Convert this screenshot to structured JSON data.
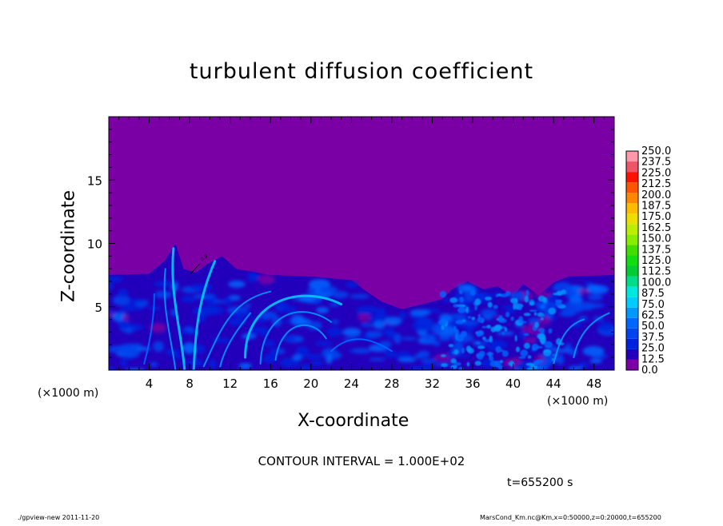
{
  "chart_data": {
    "type": "heatmap",
    "title": "turbulent diffusion coefficient",
    "xlabel": "X-coordinate",
    "ylabel": "Z-coordinate",
    "x_unit_label": "(×1000 m)",
    "xlim": [
      0,
      50
    ],
    "ylim": [
      0,
      20
    ],
    "x_ticks": [
      4,
      8,
      12,
      16,
      20,
      24,
      28,
      32,
      36,
      40,
      44,
      48
    ],
    "y_ticks": [
      5,
      10,
      15
    ],
    "x_tick_labels": [
      "4",
      "8",
      "12",
      "16",
      "20",
      "24",
      "28",
      "32",
      "36",
      "40",
      "44",
      "48"
    ],
    "y_tick_labels": [
      "5",
      "10",
      "15"
    ],
    "colorbar": {
      "levels": [
        "0.0",
        "12.5",
        "25.0",
        "37.5",
        "50.0",
        "62.5",
        "75.0",
        "87.5",
        "100.0",
        "112.5",
        "125.0",
        "137.5",
        "150.0",
        "162.5",
        "175.0",
        "187.5",
        "200.0",
        "212.5",
        "225.0",
        "237.5",
        "250.0"
      ],
      "colors": [
        "#7a00a6",
        "#2200bb",
        "#0022dd",
        "#0044ee",
        "#0066ff",
        "#0099ff",
        "#00ccff",
        "#00e8dd",
        "#00dd88",
        "#00cc33",
        "#11dd11",
        "#44dd00",
        "#88ee00",
        "#bbee00",
        "#eedd00",
        "#ffbb00",
        "#ff8800",
        "#ff5500",
        "#ff1100",
        "#ee5566",
        "#ff99aa"
      ]
    },
    "background_value": "0.0",
    "turbulent_layer_top": 7.5,
    "contour_annotation": "0.0",
    "contour_interval_text": "CONTOUR INTERVAL = 1.000E+02",
    "time_text": "t=655200 s",
    "footer_left": "./gpview-new   2011-11-20",
    "footer_right": "MarsCond_Km.nc@Km,x=0:50000,z=0:20000,t=655200"
  }
}
